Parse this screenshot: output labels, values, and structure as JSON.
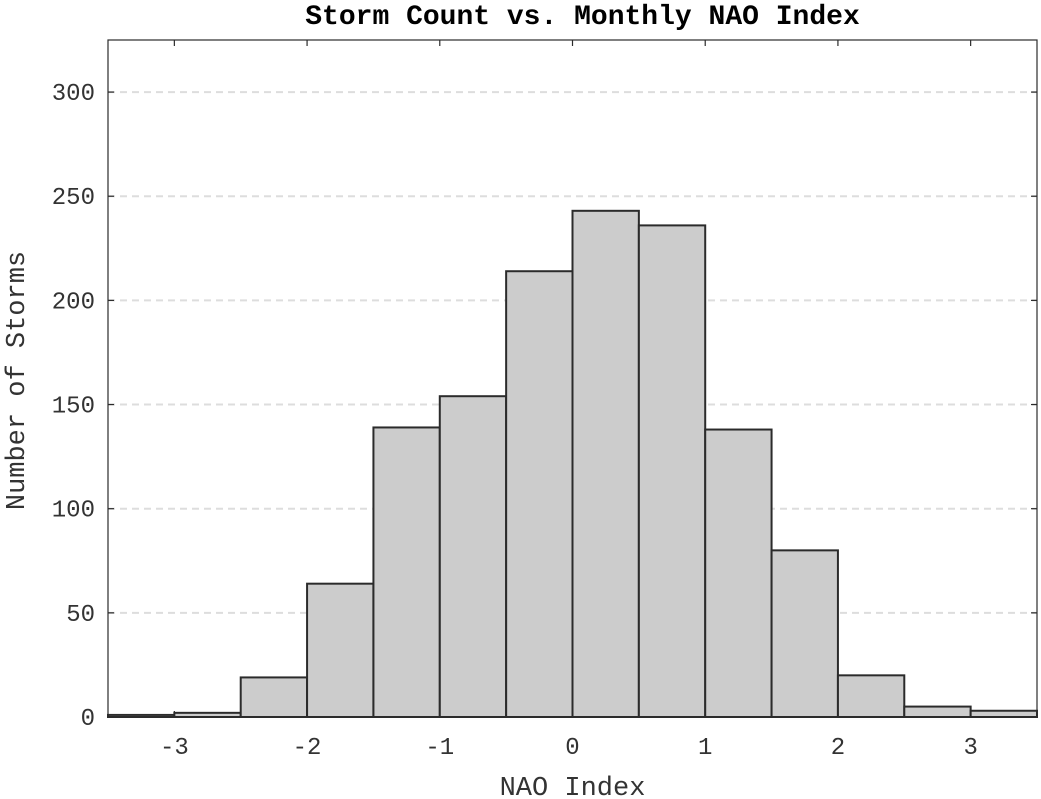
{
  "chart_data": {
    "type": "bar",
    "title": "Storm Count vs. Monthly NAO Index",
    "xlabel": "NAO Index",
    "ylabel": "Number of Storms",
    "xlim": [
      -3.5,
      3.5
    ],
    "ylim": [
      0,
      325
    ],
    "xticks": [
      -3,
      -2,
      -1,
      0,
      1,
      2,
      3
    ],
    "xtick_labels": [
      "-3",
      "-2",
      "-1",
      "0",
      "1",
      "2",
      "3"
    ],
    "yticks": [
      0,
      50,
      100,
      150,
      200,
      250,
      300
    ],
    "ytick_labels": [
      "0",
      "50",
      "100",
      "150",
      "200",
      "250",
      "300"
    ],
    "bin_edges": [
      -3.5,
      -3.0,
      -2.5,
      -2.0,
      -1.5,
      -1.0,
      -0.5,
      0.0,
      0.5,
      1.0,
      1.5,
      2.0,
      2.5,
      3.0,
      3.5
    ],
    "values": [
      1,
      2,
      19,
      64,
      139,
      154,
      214,
      243,
      236,
      138,
      80,
      20,
      5,
      3
    ],
    "grid": "y-dashed",
    "legend": "none",
    "bar_fill": "#cccccc",
    "bar_edge": "#2b2b2b",
    "grid_color": "#dddddd"
  }
}
